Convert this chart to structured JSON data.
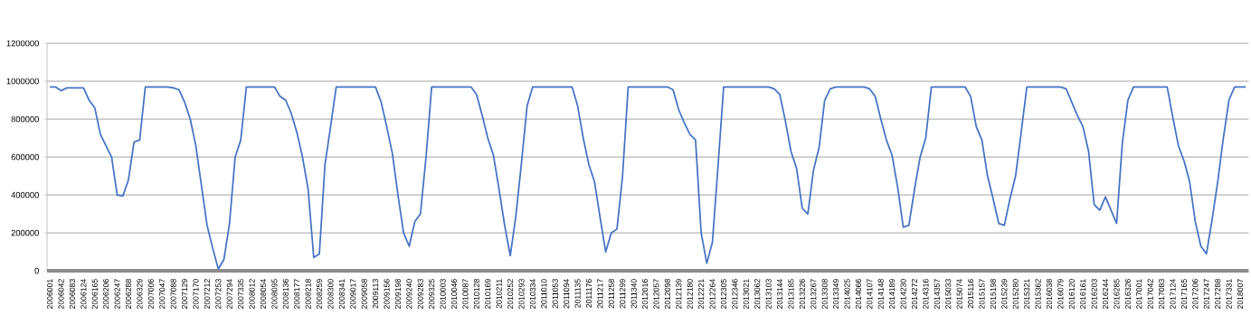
{
  "chart_data": {
    "type": "line",
    "categories": [
      "2006001",
      null,
      "2006042",
      null,
      "2006083",
      null,
      "2006124",
      null,
      "2006165",
      null,
      "2006206",
      null,
      "2006247",
      null,
      "2006288",
      null,
      "2006329",
      null,
      "2007006",
      null,
      "2007047",
      null,
      "2007088",
      null,
      "2007129",
      null,
      "2007170",
      null,
      "2007212",
      null,
      "2007253",
      null,
      "2007294",
      null,
      "2007335",
      null,
      "2008012",
      null,
      "2008054",
      null,
      "2008095",
      null,
      "2008136",
      null,
      "2008177",
      null,
      "2008218",
      null,
      "2008259",
      null,
      "2008300",
      null,
      "2008341",
      null,
      "2009017",
      null,
      "2009058",
      null,
      "2009113",
      null,
      "2009156",
      null,
      "2009198",
      null,
      "2009240",
      null,
      "2009283",
      null,
      "2009325",
      null,
      "2010003",
      null,
      "2010046",
      null,
      "2010087",
      null,
      "2010128",
      null,
      "2010169",
      null,
      "2010211",
      null,
      "2010252",
      null,
      "2010293",
      null,
      "2010334",
      null,
      "2011010",
      null,
      "2011053",
      null,
      "2011094",
      null,
      "2011135",
      null,
      "2011176",
      null,
      "2011217",
      null,
      "2011258",
      null,
      "2011299",
      null,
      "2011340",
      null,
      "2012016",
      null,
      "2012057",
      null,
      "2012098",
      null,
      "2012139",
      null,
      "2012180",
      null,
      "2012221",
      null,
      "2012264",
      null,
      "2012305",
      null,
      "2012346",
      null,
      "2013021",
      null,
      "2013062",
      null,
      "2013103",
      null,
      "2013144",
      null,
      "2013185",
      null,
      "2013226",
      null,
      "2013267",
      null,
      "2013308",
      null,
      "2013349",
      null,
      "2014025",
      null,
      "2014066",
      null,
      "2014107",
      null,
      "2014148",
      null,
      "2014189",
      null,
      "2014230",
      null,
      "2014272",
      null,
      "2014316",
      null,
      "2014357",
      null,
      "2015033",
      null,
      "2015074",
      null,
      "2015116",
      null,
      "2015157",
      null,
      "2015198",
      null,
      "2015239",
      null,
      "2015280",
      null,
      "2015321",
      null,
      "2015362",
      null,
      "2016038",
      null,
      "2016079",
      null,
      "2016120",
      null,
      "2016161",
      null,
      "2016203",
      null,
      "2016244",
      null,
      "2016285",
      null,
      "2016326",
      null,
      "2017001",
      null,
      "2017042",
      null,
      "2017083",
      null,
      "2017124",
      null,
      "2017165",
      null,
      "2017206",
      null,
      "2017247",
      null,
      "2017288",
      null,
      "2017331",
      null,
      "2018007",
      null
    ],
    "values": [
      970000,
      970000,
      950000,
      965000,
      965000,
      965000,
      965000,
      900000,
      860000,
      720000,
      660000,
      600000,
      400000,
      395000,
      480000,
      680000,
      690000,
      970000,
      970000,
      970000,
      970000,
      970000,
      965000,
      955000,
      890000,
      800000,
      660000,
      450000,
      240000,
      120000,
      10000,
      60000,
      250000,
      600000,
      690000,
      970000,
      970000,
      970000,
      970000,
      970000,
      970000,
      920000,
      900000,
      830000,
      730000,
      600000,
      430000,
      70000,
      90000,
      560000,
      760000,
      970000,
      970000,
      970000,
      970000,
      970000,
      970000,
      970000,
      970000,
      890000,
      760000,
      620000,
      400000,
      200000,
      130000,
      260000,
      300000,
      600000,
      970000,
      970000,
      970000,
      970000,
      970000,
      970000,
      970000,
      970000,
      930000,
      820000,
      700000,
      610000,
      430000,
      240000,
      80000,
      290000,
      570000,
      870000,
      970000,
      970000,
      970000,
      970000,
      970000,
      970000,
      970000,
      970000,
      870000,
      700000,
      560000,
      470000,
      280000,
      100000,
      200000,
      220000,
      500000,
      970000,
      970000,
      970000,
      970000,
      970000,
      970000,
      970000,
      970000,
      955000,
      850000,
      780000,
      720000,
      690000,
      200000,
      40000,
      150000,
      550000,
      970000,
      970000,
      970000,
      970000,
      970000,
      970000,
      970000,
      970000,
      970000,
      960000,
      930000,
      790000,
      630000,
      540000,
      330000,
      300000,
      530000,
      650000,
      900000,
      960000,
      970000,
      970000,
      970000,
      970000,
      970000,
      970000,
      960000,
      920000,
      800000,
      690000,
      610000,
      440000,
      230000,
      240000,
      430000,
      600000,
      700000,
      970000,
      970000,
      970000,
      970000,
      970000,
      970000,
      970000,
      920000,
      760000,
      690000,
      500000,
      380000,
      250000,
      240000,
      380000,
      500000,
      730000,
      970000,
      970000,
      970000,
      970000,
      970000,
      970000,
      970000,
      960000,
      890000,
      820000,
      760000,
      630000,
      350000,
      320000,
      390000,
      320000,
      250000,
      670000,
      900000,
      970000,
      970000,
      970000,
      970000,
      970000,
      970000,
      970000,
      810000,
      660000,
      580000,
      470000,
      260000,
      130000,
      90000,
      270000,
      470000,
      700000,
      900000,
      970000,
      970000,
      970000
    ],
    "color": "#4472c4",
    "ylim": [
      0,
      1200000
    ],
    "yticks": [
      0,
      200000,
      400000,
      600000,
      800000,
      1000000,
      1200000
    ],
    "grid": "y"
  }
}
